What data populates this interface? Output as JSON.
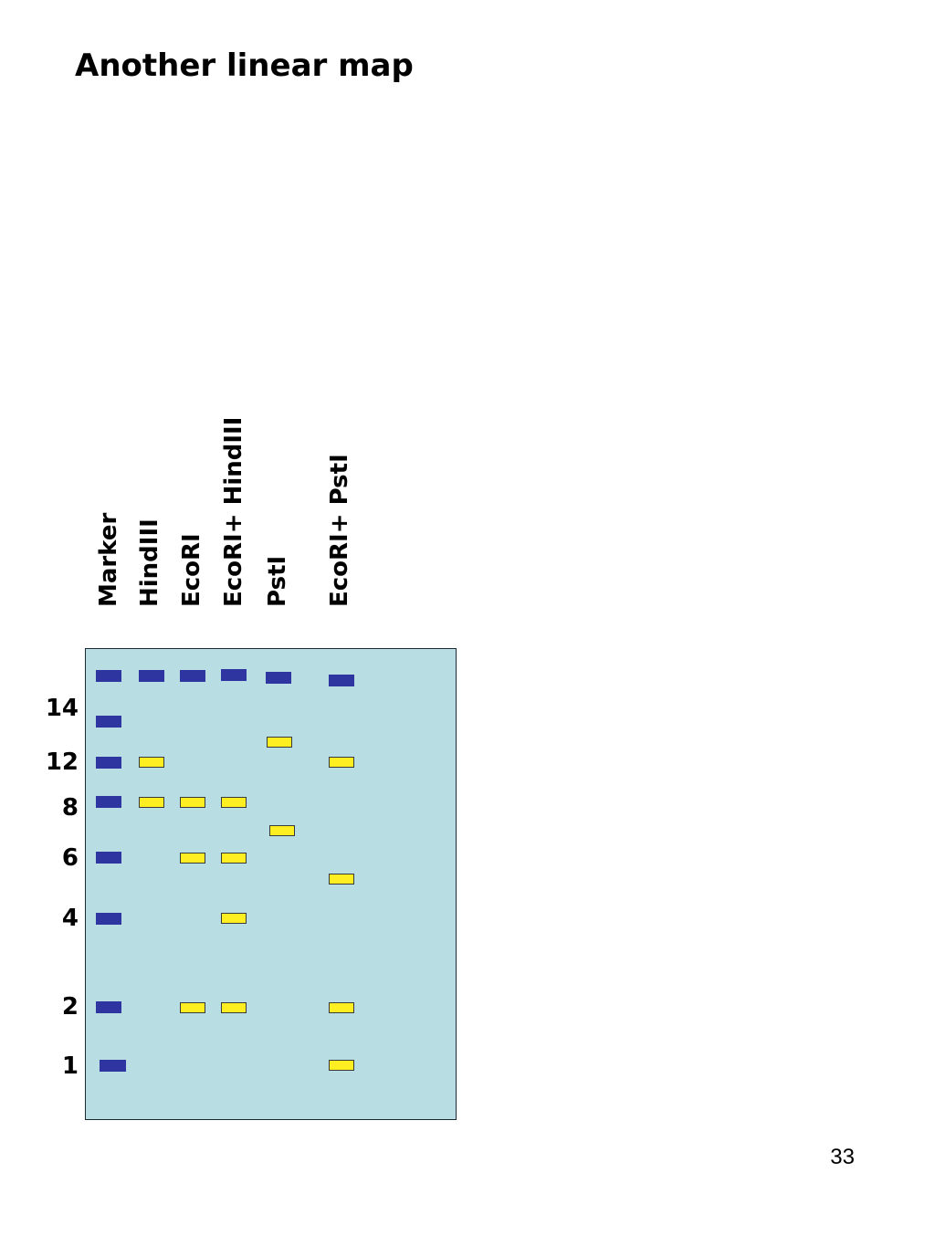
{
  "title": "Another linear map",
  "page_number": "33",
  "lanes": [
    {
      "label": "Marker",
      "type": "marker"
    },
    {
      "label": "HindIII",
      "type": "digest"
    },
    {
      "label": "EcoRI",
      "type": "digest"
    },
    {
      "label": "EcoRI+ HindIII",
      "type": "digest"
    },
    {
      "label": "PstI",
      "type": "digest"
    },
    {
      "label": "EcoRI+ PstI",
      "type": "digest"
    }
  ],
  "size_labels": [
    "14",
    "12",
    "8",
    "6",
    "4",
    "2",
    "1"
  ],
  "colors": {
    "gel": "#b8dee4",
    "marker_band": "#2e35a0",
    "fragment_band": "#ffee22"
  }
}
